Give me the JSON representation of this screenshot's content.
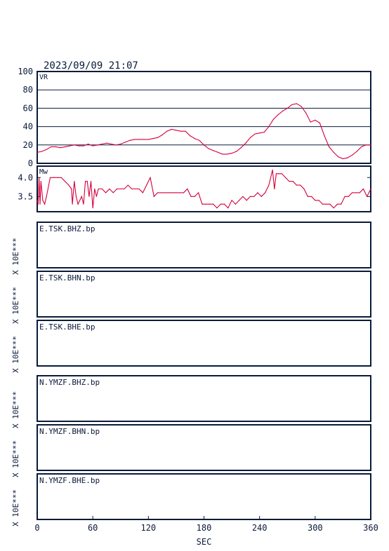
{
  "header": {
    "timestamp": "2023/09/09 21:07"
  },
  "chart_data": [
    {
      "type": "line",
      "label": "VR",
      "ylim": [
        0,
        100
      ],
      "yticks": [
        0,
        20,
        40,
        60,
        80,
        100
      ],
      "grid": true,
      "line_color": "#d4003c",
      "x": [
        0,
        5,
        10,
        15,
        20,
        25,
        30,
        35,
        40,
        45,
        50,
        55,
        60,
        65,
        70,
        75,
        80,
        85,
        90,
        95,
        100,
        105,
        110,
        115,
        120,
        125,
        130,
        135,
        140,
        145,
        150,
        155,
        160,
        165,
        170,
        175,
        180,
        185,
        190,
        195,
        200,
        205,
        210,
        215,
        220,
        225,
        230,
        235,
        240,
        245,
        250,
        255,
        260,
        265,
        270,
        275,
        280,
        285,
        290,
        295,
        300,
        305,
        310,
        315,
        320,
        325,
        330,
        335,
        340,
        345,
        350,
        355,
        360
      ],
      "values": [
        12,
        13,
        15,
        18,
        18,
        17,
        18,
        19,
        20,
        19,
        19,
        21,
        19,
        20,
        21,
        22,
        21,
        20,
        21,
        23,
        25,
        26,
        26,
        26,
        26,
        27,
        28,
        31,
        35,
        37,
        36,
        35,
        35,
        30,
        27,
        25,
        20,
        16,
        14,
        12,
        10,
        10,
        11,
        13,
        17,
        22,
        28,
        32,
        33,
        34,
        40,
        48,
        53,
        57,
        60,
        64,
        65,
        62,
        55,
        45,
        47,
        44,
        30,
        18,
        12,
        7,
        5,
        6,
        9,
        13,
        18,
        20,
        20
      ]
    },
    {
      "type": "line",
      "label": "Mw",
      "ylim": [
        3.1,
        4.3
      ],
      "yticks": [
        3.5,
        4.0
      ],
      "ytick_labels": [
        "3.5",
        "4.0"
      ],
      "line_color": "#d4003c",
      "x": [
        0,
        1,
        2,
        3,
        4,
        6,
        8,
        10,
        14,
        18,
        22,
        26,
        30,
        34,
        37,
        38,
        40,
        42,
        44,
        48,
        50,
        52,
        54,
        56,
        58,
        60,
        62,
        64,
        66,
        68,
        70,
        74,
        78,
        82,
        86,
        90,
        94,
        98,
        102,
        106,
        110,
        114,
        118,
        122,
        126,
        130,
        134,
        138,
        142,
        146,
        150,
        154,
        158,
        162,
        166,
        170,
        174,
        178,
        182,
        186,
        190,
        194,
        198,
        202,
        206,
        210,
        214,
        218,
        222,
        226,
        230,
        234,
        238,
        242,
        246,
        250,
        254,
        256,
        258,
        260,
        264,
        268,
        272,
        276,
        280,
        284,
        288,
        292,
        296,
        300,
        304,
        308,
        312,
        316,
        320,
        324,
        328,
        332,
        336,
        340,
        344,
        348,
        352,
        356,
        360
      ],
      "values": [
        3.4,
        3.3,
        4.0,
        3.3,
        3.9,
        3.4,
        3.3,
        3.5,
        4.0,
        4.0,
        4.0,
        4.0,
        3.9,
        3.8,
        3.7,
        3.3,
        3.9,
        3.5,
        3.3,
        3.5,
        3.3,
        3.9,
        3.9,
        3.5,
        3.9,
        3.2,
        3.7,
        3.5,
        3.7,
        3.7,
        3.7,
        3.6,
        3.7,
        3.6,
        3.7,
        3.7,
        3.7,
        3.8,
        3.7,
        3.7,
        3.7,
        3.6,
        3.8,
        4.0,
        3.5,
        3.6,
        3.6,
        3.6,
        3.6,
        3.6,
        3.6,
        3.6,
        3.6,
        3.7,
        3.5,
        3.5,
        3.6,
        3.3,
        3.3,
        3.3,
        3.3,
        3.2,
        3.3,
        3.3,
        3.2,
        3.4,
        3.3,
        3.4,
        3.5,
        3.4,
        3.5,
        3.5,
        3.6,
        3.5,
        3.6,
        3.8,
        4.2,
        3.7,
        4.1,
        4.1,
        4.1,
        4.0,
        3.9,
        3.9,
        3.8,
        3.8,
        3.7,
        3.5,
        3.5,
        3.4,
        3.4,
        3.3,
        3.3,
        3.3,
        3.2,
        3.3,
        3.3,
        3.5,
        3.5,
        3.6,
        3.6,
        3.6,
        3.7,
        3.5,
        3.7
      ]
    }
  ],
  "traces": [
    {
      "label": "E.TSK.BHZ.bp",
      "scale_label": "X 10E***"
    },
    {
      "label": "E.TSK.BHN.bp",
      "scale_label": "X 10E***"
    },
    {
      "label": "E.TSK.BHE.bp",
      "scale_label": "X 10E***"
    },
    {
      "label": "N.YMZF.BHZ.bp",
      "scale_label": "X 10E***"
    },
    {
      "label": "N.YMZF.BHN.bp",
      "scale_label": "X 10E***"
    },
    {
      "label": "N.YMZF.BHE.bp",
      "scale_label": "X 10E***"
    }
  ],
  "x_axis": {
    "label": "SEC",
    "range": [
      0,
      360
    ],
    "ticks": [
      0,
      60,
      120,
      180,
      240,
      300,
      360
    ]
  }
}
